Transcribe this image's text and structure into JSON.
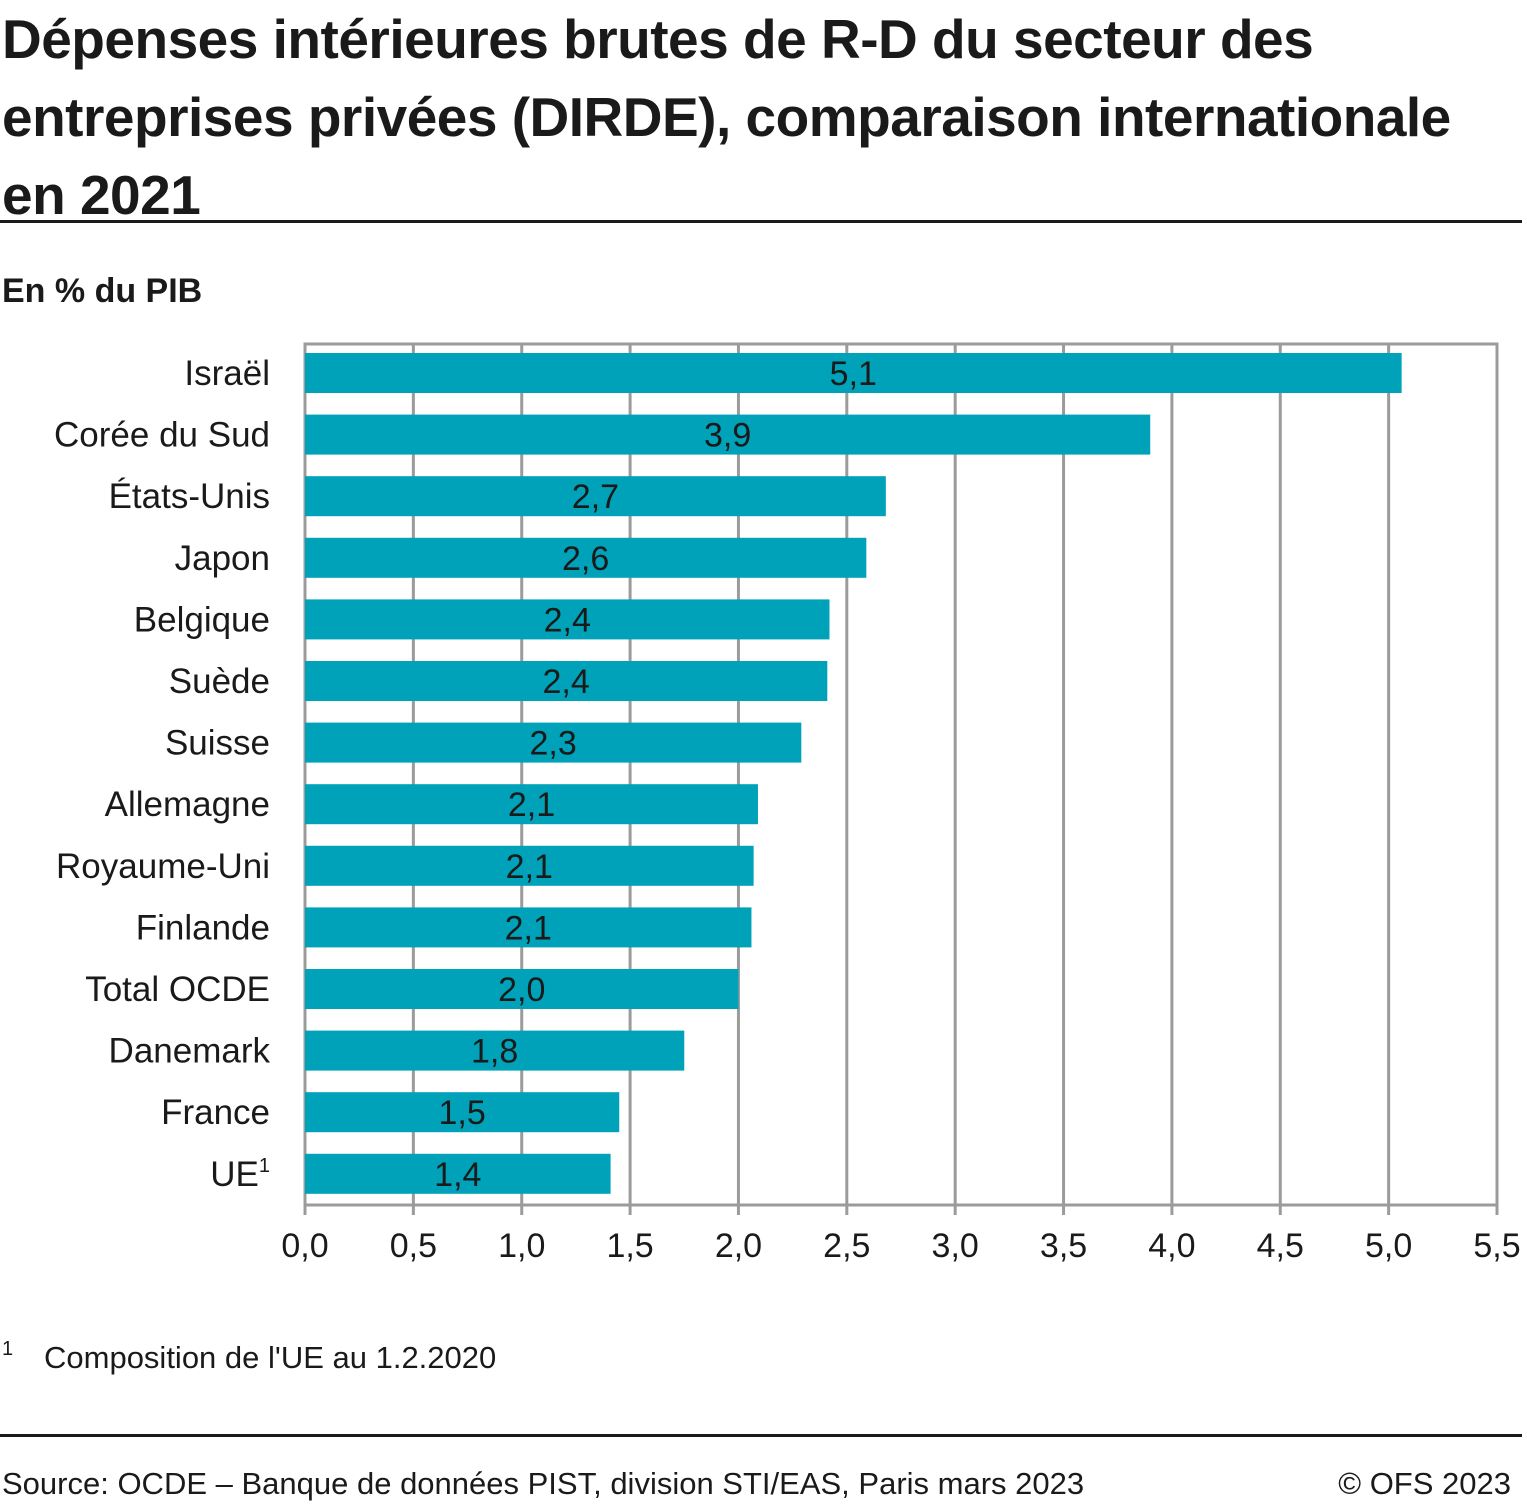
{
  "title": "Dépenses intérieures brutes de R-D du secteur des entreprises privées (DIRDE), comparaison internationale en 2021",
  "subtitle": "En % du PIB",
  "footnote": {
    "marker": "1",
    "text": "Composition de l'UE au 1.2.2020"
  },
  "source": "Source: OCDE – Banque de données PIST, division STI/EAS, Paris mars 2023",
  "copyright": "© OFS 2023",
  "chart_data": {
    "type": "bar",
    "orientation": "horizontal",
    "categories": [
      "Israël",
      "Corée du Sud",
      "États-Unis",
      "Japon",
      "Belgique",
      "Suède",
      "Suisse",
      "Allemagne",
      "Royaume-Uni",
      "Finlande",
      "Total OCDE",
      "Danemark",
      "France",
      "UE"
    ],
    "category_superscripts": [
      "",
      "",
      "",
      "",
      "",
      "",
      "",
      "",
      "",
      "",
      "",
      "",
      "",
      "1"
    ],
    "values": [
      5.06,
      3.9,
      2.68,
      2.59,
      2.42,
      2.41,
      2.29,
      2.09,
      2.07,
      2.06,
      2.0,
      1.75,
      1.45,
      1.41
    ],
    "data_labels": [
      "5,1",
      "3,9",
      "2,7",
      "2,6",
      "2,4",
      "2,4",
      "2,3",
      "2,1",
      "2,1",
      "2,1",
      "2,0",
      "1,8",
      "1,5",
      "1,4"
    ],
    "xlim": [
      0,
      5.5
    ],
    "xticks": [
      0,
      0.5,
      1.0,
      1.5,
      2.0,
      2.5,
      3.0,
      3.5,
      4.0,
      4.5,
      5.0,
      5.5
    ],
    "xtick_labels": [
      "0,0",
      "0,5",
      "1,0",
      "1,5",
      "2,0",
      "2,5",
      "3,0",
      "3,5",
      "4,0",
      "4,5",
      "5,0",
      "5,5"
    ],
    "grid": "vertical",
    "legend": "none",
    "bar_color": "#00a2b9",
    "grid_color": "#9b9b9b"
  }
}
